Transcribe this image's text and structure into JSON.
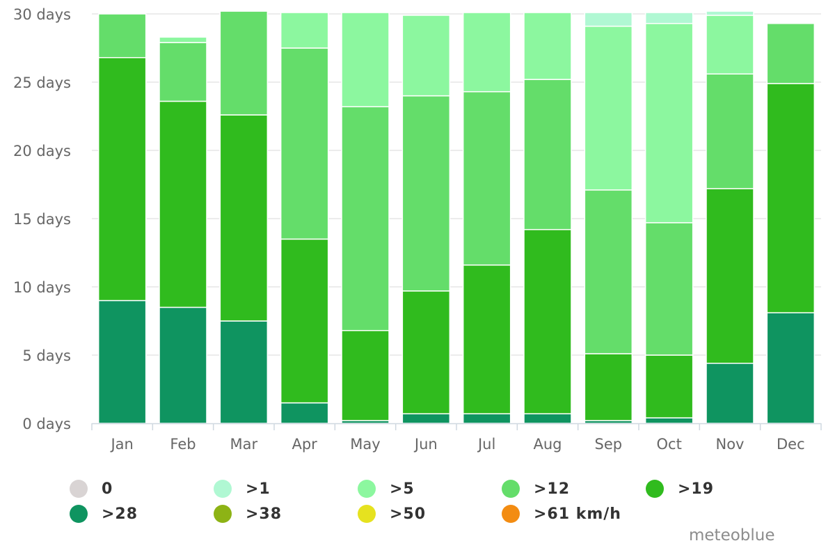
{
  "chart_data": {
    "type": "bar",
    "stacked": true,
    "categories": [
      "Jan",
      "Feb",
      "Mar",
      "Apr",
      "May",
      "Jun",
      "Jul",
      "Aug",
      "Sep",
      "Oct",
      "Nov",
      "Dec"
    ],
    "y_unit_suffix": " days",
    "ylim": [
      0,
      30
    ],
    "yticks": [
      0,
      5,
      10,
      15,
      20,
      25,
      30
    ],
    "grid": true,
    "legend_position": "bottom",
    "series": [
      {
        "name": "0",
        "color": "#d9d4d4",
        "values": [
          0,
          0,
          0,
          0,
          0,
          0,
          0,
          0,
          0,
          0,
          0,
          0
        ]
      },
      {
        "name": ">28",
        "color": "#0f9460",
        "values": [
          9.0,
          8.5,
          7.5,
          1.5,
          0.2,
          0.7,
          0.7,
          0.7,
          0.2,
          0.4,
          4.4,
          8.1
        ]
      },
      {
        "name": ">19",
        "color": "#30bb1e",
        "values": [
          17.8,
          15.1,
          15.1,
          12.0,
          6.6,
          9.0,
          10.9,
          13.5,
          4.9,
          4.6,
          12.8,
          16.8
        ]
      },
      {
        "name": ">12",
        "color": "#64dd6a",
        "values": [
          3.2,
          4.3,
          7.6,
          14.0,
          16.4,
          14.3,
          12.7,
          11.0,
          12.0,
          9.7,
          8.4,
          4.4
        ]
      },
      {
        "name": ">5",
        "color": "#8cf79f",
        "values": [
          0,
          0.4,
          0,
          2.6,
          6.9,
          5.9,
          5.8,
          4.9,
          12.0,
          14.6,
          4.3,
          0
        ]
      },
      {
        "name": ">1",
        "color": "#b0f8d3",
        "values": [
          0,
          0,
          0,
          0,
          0,
          0,
          0,
          0,
          1.0,
          0.8,
          0.3,
          0
        ]
      },
      {
        "name": ">38",
        "color": "#8db315",
        "values": [
          0,
          0,
          0,
          0,
          0,
          0,
          0,
          0,
          0,
          0,
          0,
          0
        ]
      },
      {
        "name": ">50",
        "color": "#e6e21f",
        "values": [
          0,
          0,
          0,
          0,
          0,
          0,
          0,
          0,
          0,
          0,
          0,
          0
        ]
      },
      {
        "name": ">61 km/h",
        "color": "#f38c12",
        "values": [
          0,
          0,
          0,
          0,
          0,
          0,
          0,
          0,
          0,
          0,
          0,
          0
        ]
      }
    ],
    "stack_order": [
      ">28",
      ">19",
      ">12",
      ">5",
      ">1"
    ]
  },
  "legend": [
    {
      "label": "0",
      "color": "#d9d4d4"
    },
    {
      "label": ">1",
      "color": "#b0f8d3"
    },
    {
      "label": ">5",
      "color": "#8cf79f"
    },
    {
      "label": ">12",
      "color": "#64dd6a"
    },
    {
      "label": ">19",
      "color": "#30bb1e"
    },
    {
      "label": ">28",
      "color": "#0f9460"
    },
    {
      "label": ">38",
      "color": "#8db315"
    },
    {
      "label": ">50",
      "color": "#e6e21f"
    },
    {
      "label": ">61 km/h",
      "color": "#f38c12"
    }
  ],
  "credit": "meteoblue"
}
